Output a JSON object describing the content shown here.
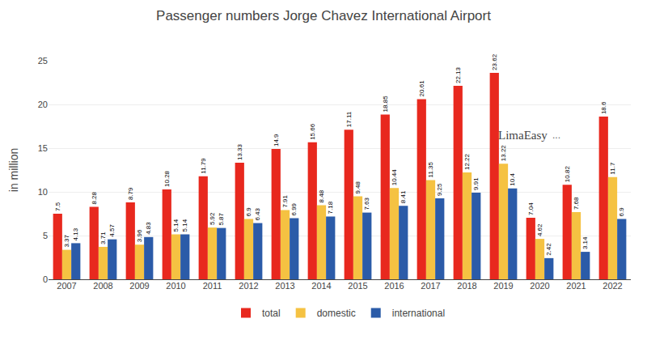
{
  "chart_data": {
    "type": "bar",
    "title": "Passenger numbers Jorge Chavez International Airport",
    "y_label": "in million",
    "categories": [
      2007,
      2008,
      2009,
      2010,
      2011,
      2012,
      2013,
      2014,
      2015,
      2016,
      2017,
      2018,
      2019,
      2020,
      2021,
      2022
    ],
    "series": [
      {
        "name": "total",
        "color": "#e8281e",
        "values": [
          7.5,
          8.28,
          8.79,
          10.28,
          11.79,
          13.33,
          14.9,
          15.66,
          17.11,
          18.85,
          20.61,
          22.13,
          23.62,
          7.04,
          10.82,
          18.6
        ]
      },
      {
        "name": "domestic",
        "color": "#f5c242",
        "values": [
          3.37,
          3.71,
          3.96,
          5.14,
          5.92,
          6.9,
          7.91,
          8.48,
          9.48,
          10.44,
          11.35,
          12.22,
          13.22,
          4.62,
          7.68,
          11.7
        ]
      },
      {
        "name": "international",
        "color": "#2b5ba8",
        "values": [
          4.13,
          4.57,
          4.83,
          5.14,
          5.87,
          6.43,
          6.99,
          7.18,
          7.63,
          8.41,
          9.25,
          9.91,
          10.4,
          2.42,
          3.14,
          6.9
        ]
      }
    ],
    "ylim": [
      0,
      25
    ],
    "yticks": [
      0,
      5,
      10,
      15,
      20,
      25
    ],
    "grid": true,
    "legend": "bottom",
    "data_labels": true,
    "annotations": [
      "LimaEasy",
      "..."
    ]
  }
}
